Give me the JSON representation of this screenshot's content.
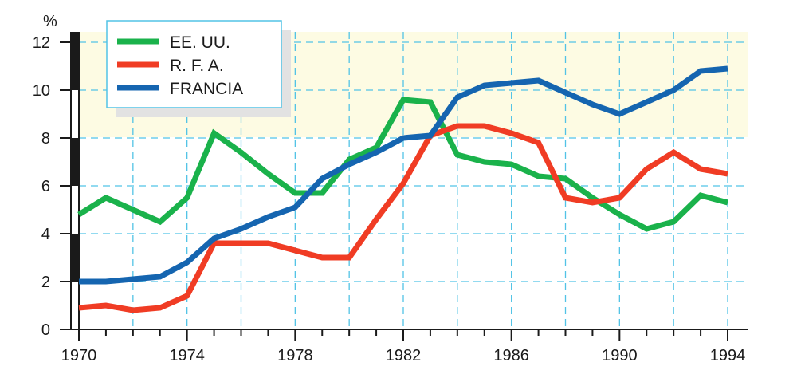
{
  "chart_data": {
    "type": "line",
    "unit": "%",
    "x": [
      1970,
      1971,
      1972,
      1973,
      1974,
      1975,
      1976,
      1977,
      1978,
      1979,
      1980,
      1981,
      1982,
      1983,
      1984,
      1985,
      1986,
      1987,
      1988,
      1989,
      1990,
      1991,
      1992,
      1993,
      1994
    ],
    "xticks": [
      "1970",
      "1974",
      "1978",
      "1982",
      "1986",
      "1990",
      "1994"
    ],
    "yticks": [
      "0",
      "2",
      "4",
      "6",
      "8",
      "10",
      "12"
    ],
    "xlim": [
      1970,
      1994
    ],
    "ylim": [
      0,
      12
    ],
    "grid": true,
    "legend_position": "top-left",
    "series": [
      {
        "name": "EE. UU.",
        "color": "#1ab24b",
        "values": [
          4.8,
          5.5,
          5.0,
          4.5,
          5.5,
          8.2,
          7.4,
          6.5,
          5.7,
          5.7,
          7.1,
          7.6,
          9.6,
          9.5,
          7.3,
          7.0,
          6.9,
          6.4,
          6.3,
          5.5,
          4.8,
          4.2,
          4.5,
          5.6,
          5.3
        ]
      },
      {
        "name": "R. F. A.",
        "color": "#f03c24",
        "values": [
          0.9,
          1.0,
          0.8,
          0.9,
          1.4,
          3.6,
          3.6,
          3.6,
          3.3,
          3.0,
          3.0,
          4.6,
          6.1,
          8.1,
          8.5,
          8.5,
          8.2,
          7.8,
          5.5,
          5.3,
          5.5,
          6.7,
          7.4,
          6.7,
          6.5
        ]
      },
      {
        "name": "FRANCIA",
        "color": "#1565b0",
        "values": [
          2.0,
          2.0,
          2.1,
          2.2,
          2.8,
          3.8,
          4.2,
          4.7,
          5.1,
          6.3,
          6.9,
          7.4,
          8.0,
          8.1,
          9.7,
          10.2,
          10.3,
          10.4,
          9.9,
          9.4,
          9.0,
          9.5,
          10.0,
          10.8,
          10.9
        ]
      }
    ]
  },
  "colors": {
    "grid": "#52c3e6",
    "axis": "#1a1a1a",
    "band": "#fdfbe3",
    "legend_border": "#52c3e6",
    "legend_shadow": "#e2e2e2"
  }
}
